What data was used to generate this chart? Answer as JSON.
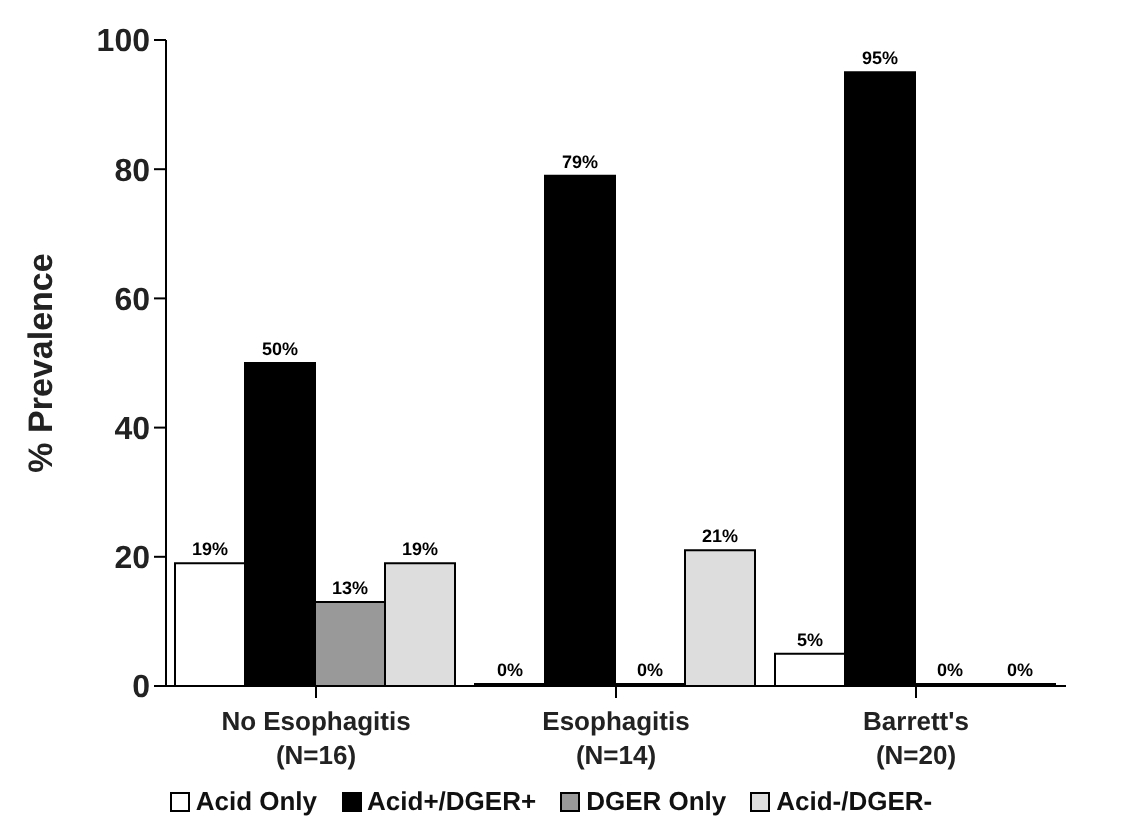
{
  "chart_data": {
    "type": "bar",
    "ylabel": "% Prevalence",
    "categories": [
      "No Esophagitis\n(N=16)",
      "Esophagitis\n(N=14)",
      "Barrett's\n(N=20)"
    ],
    "series": [
      {
        "name": "Acid Only",
        "color": "#ffffff",
        "values": [
          19,
          0,
          5
        ],
        "value_labels": [
          "19%",
          "0%",
          "5%"
        ]
      },
      {
        "name": "Acid+/DGER+",
        "color": "#000000",
        "values": [
          50,
          79,
          95
        ],
        "value_labels": [
          "50%",
          "79%",
          "95%"
        ]
      },
      {
        "name": "DGER Only",
        "color": "#999999",
        "values": [
          13,
          0,
          0
        ],
        "value_labels": [
          "13%",
          "0%",
          "0%"
        ]
      },
      {
        "name": "Acid-/DGER-",
        "color": "#dddddd",
        "values": [
          19,
          21,
          0
        ],
        "value_labels": [
          "19%",
          "21%",
          "0%"
        ]
      }
    ],
    "ylim": [
      0,
      100
    ],
    "yticks": [
      0,
      20,
      40,
      60,
      80,
      100
    ],
    "grid": false,
    "legend": "bottom"
  }
}
